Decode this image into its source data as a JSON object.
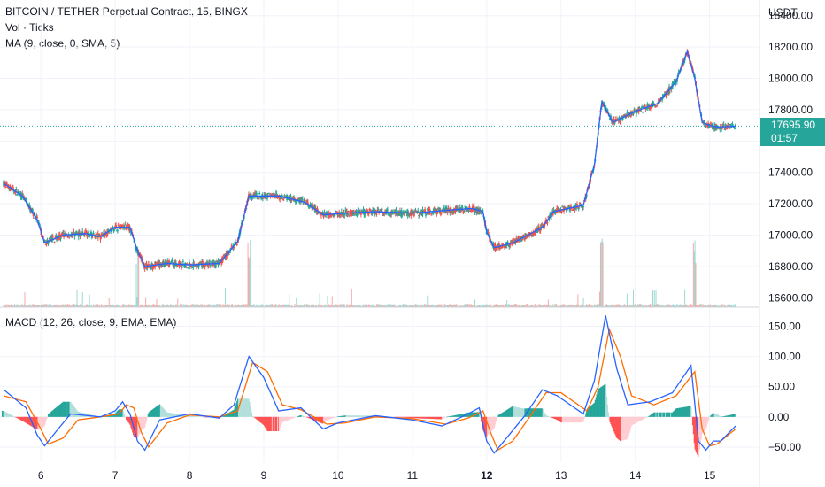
{
  "header": {
    "title": "BITCOIN / TETHER Perpetual Contract, 15, BINGX",
    "vol_label": "Vol · Ticks",
    "ma_label": "MA (9, close, 0, SMA, 5)",
    "macd_label": "MACD (12, 26, close, 9, EMA, EMA)",
    "currency": "USDT"
  },
  "price_badge": {
    "price": "17695.90",
    "countdown": "01:57",
    "color": "#26a69a"
  },
  "colors": {
    "up": "#26a69a",
    "down": "#ef5350",
    "ma": "#2962ff",
    "macd": "#2962ff",
    "signal": "#ff6d00",
    "grid": "#f0f3fa",
    "last_price_line": "#26a69a"
  },
  "chart_data": [
    {
      "type": "line",
      "title": "BITCOIN / TETHER Perpetual Contract, 15, BINGX",
      "series": [
        {
          "name": "MA (9, close, 0, SMA, 5)",
          "points": [
            [
              5.5,
              17330
            ],
            [
              5.75,
              17250
            ],
            [
              5.95,
              17100
            ],
            [
              6.05,
              16950
            ],
            [
              6.3,
              17000
            ],
            [
              6.6,
              17010
            ],
            [
              6.8,
              16990
            ],
            [
              7.0,
              17050
            ],
            [
              7.2,
              17050
            ],
            [
              7.3,
              16900
            ],
            [
              7.4,
              16800
            ],
            [
              7.7,
              16820
            ],
            [
              8.0,
              16810
            ],
            [
              8.4,
              16820
            ],
            [
              8.65,
              16960
            ],
            [
              8.8,
              17250
            ],
            [
              9.2,
              17250
            ],
            [
              9.55,
              17210
            ],
            [
              9.8,
              17130
            ],
            [
              10.1,
              17140
            ],
            [
              10.5,
              17150
            ],
            [
              11.0,
              17140
            ],
            [
              11.5,
              17160
            ],
            [
              11.8,
              17170
            ],
            [
              11.95,
              17150
            ],
            [
              12.0,
              17020
            ],
            [
              12.1,
              16920
            ],
            [
              12.35,
              16950
            ],
            [
              12.75,
              17050
            ],
            [
              12.9,
              17150
            ],
            [
              13.3,
              17190
            ],
            [
              13.45,
              17450
            ],
            [
              13.55,
              17850
            ],
            [
              13.7,
              17720
            ],
            [
              14.0,
              17790
            ],
            [
              14.3,
              17840
            ],
            [
              14.55,
              17980
            ],
            [
              14.7,
              18170
            ],
            [
              14.8,
              18000
            ],
            [
              14.9,
              17720
            ],
            [
              15.0,
              17700
            ],
            [
              15.1,
              17690
            ],
            [
              15.35,
              17695
            ]
          ]
        }
      ],
      "volume_spikes": [
        {
          "x": 13.55,
          "label": "spike"
        },
        {
          "x": 14.8,
          "label": "spike"
        },
        {
          "x": 7.3,
          "label": "spike"
        },
        {
          "x": 8.8,
          "label": "spike"
        }
      ],
      "y_ticks": [
        16600,
        16800,
        17000,
        17200,
        17400,
        17600,
        17800,
        18000,
        18200,
        18400
      ],
      "y_tick_labels": [
        "16600.00",
        "16800.00",
        "17000.00",
        "17200.00",
        "17400.00",
        "17600.00",
        "17800.00",
        "18000.00",
        "18200.00",
        "18400.00"
      ],
      "ylim": [
        16540,
        18500
      ],
      "last_price": 17695.9,
      "ylabel": "USDT"
    },
    {
      "type": "line",
      "title": "MACD (12, 26, close, 9, EMA, EMA)",
      "series": [
        {
          "name": "MACD",
          "points": [
            [
              5.5,
              45
            ],
            [
              5.8,
              15
            ],
            [
              5.95,
              -30
            ],
            [
              6.05,
              -48
            ],
            [
              6.2,
              -25
            ],
            [
              6.4,
              5
            ],
            [
              6.8,
              0
            ],
            [
              7.0,
              10
            ],
            [
              7.1,
              25
            ],
            [
              7.2,
              5
            ],
            [
              7.3,
              -40
            ],
            [
              7.4,
              -55
            ],
            [
              7.6,
              -5
            ],
            [
              8.0,
              5
            ],
            [
              8.4,
              -2
            ],
            [
              8.6,
              20
            ],
            [
              8.8,
              100
            ],
            [
              9.0,
              65
            ],
            [
              9.2,
              10
            ],
            [
              9.5,
              15
            ],
            [
              9.8,
              -20
            ],
            [
              10.0,
              -10
            ],
            [
              10.5,
              2
            ],
            [
              11.0,
              -5
            ],
            [
              11.4,
              -15
            ],
            [
              11.7,
              2
            ],
            [
              11.9,
              15
            ],
            [
              12.0,
              -40
            ],
            [
              12.1,
              -60
            ],
            [
              12.3,
              -30
            ],
            [
              12.5,
              0
            ],
            [
              12.75,
              45
            ],
            [
              12.95,
              35
            ],
            [
              13.3,
              5
            ],
            [
              13.45,
              60
            ],
            [
              13.6,
              168
            ],
            [
              13.75,
              80
            ],
            [
              13.9,
              20
            ],
            [
              14.2,
              25
            ],
            [
              14.5,
              40
            ],
            [
              14.75,
              85
            ],
            [
              14.85,
              -40
            ],
            [
              14.95,
              -55
            ],
            [
              15.05,
              -40
            ],
            [
              15.15,
              -40
            ],
            [
              15.35,
              -15
            ]
          ]
        },
        {
          "name": "Signal",
          "points": [
            [
              5.5,
              35
            ],
            [
              5.8,
              25
            ],
            [
              6.0,
              -20
            ],
            [
              6.1,
              -45
            ],
            [
              6.3,
              -35
            ],
            [
              6.5,
              -5
            ],
            [
              6.8,
              0
            ],
            [
              7.05,
              5
            ],
            [
              7.15,
              20
            ],
            [
              7.25,
              15
            ],
            [
              7.35,
              -25
            ],
            [
              7.45,
              -50
            ],
            [
              7.7,
              -10
            ],
            [
              8.0,
              3
            ],
            [
              8.4,
              0
            ],
            [
              8.65,
              10
            ],
            [
              8.85,
              90
            ],
            [
              9.05,
              75
            ],
            [
              9.25,
              20
            ],
            [
              9.5,
              12
            ],
            [
              9.85,
              -12
            ],
            [
              10.1,
              -10
            ],
            [
              10.5,
              0
            ],
            [
              11.0,
              -3
            ],
            [
              11.45,
              -12
            ],
            [
              11.75,
              -2
            ],
            [
              11.95,
              10
            ],
            [
              12.05,
              -25
            ],
            [
              12.15,
              -55
            ],
            [
              12.35,
              -40
            ],
            [
              12.55,
              -5
            ],
            [
              12.8,
              40
            ],
            [
              13.0,
              40
            ],
            [
              13.35,
              10
            ],
            [
              13.5,
              50
            ],
            [
              13.65,
              145
            ],
            [
              13.8,
              100
            ],
            [
              13.95,
              35
            ],
            [
              14.25,
              20
            ],
            [
              14.55,
              35
            ],
            [
              14.8,
              75
            ],
            [
              14.9,
              -20
            ],
            [
              15.0,
              -48
            ],
            [
              15.1,
              -45
            ],
            [
              15.2,
              -35
            ],
            [
              15.35,
              -20
            ]
          ]
        }
      ],
      "y_ticks": [
        -50,
        0,
        50,
        100,
        150
      ],
      "y_tick_labels": [
        "−50.00",
        "0.00",
        "50.00",
        "100.00",
        "150.00"
      ],
      "ylim": [
        -75,
        180
      ]
    }
  ],
  "x_axis": {
    "ticks": [
      6,
      7,
      8,
      9,
      10,
      11,
      12,
      13,
      14,
      15
    ],
    "labels": [
      "6",
      "7",
      "8",
      "9",
      "10",
      "11",
      "12",
      "13",
      "14",
      "15"
    ],
    "bold": [
      false,
      false,
      false,
      false,
      false,
      false,
      true,
      false,
      false,
      false
    ],
    "xlim": [
      5.45,
      15.6
    ]
  }
}
